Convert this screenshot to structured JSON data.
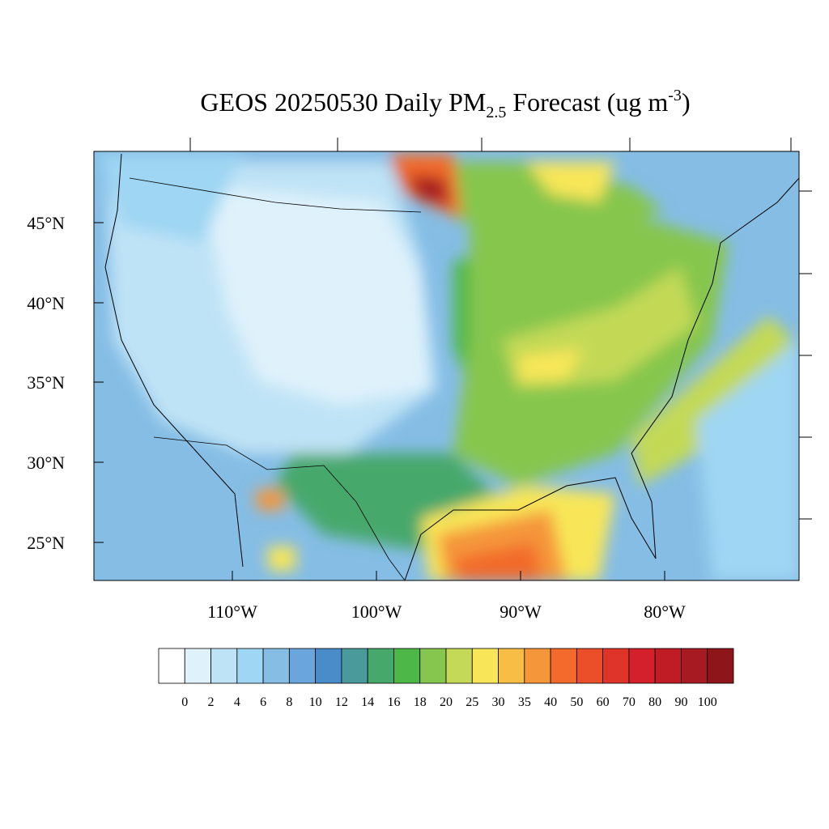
{
  "title": {
    "main": "GEOS 20250530 Daily PM",
    "sub": "2.5",
    "rest": " Forecast (ug m",
    "sup": "-3",
    "end": ")"
  },
  "lat_labels": [
    "45°N",
    "40°N",
    "35°N",
    "30°N",
    "25°N"
  ],
  "lon_labels": [
    "110°W",
    "100°W",
    "90°W",
    "80°W"
  ],
  "colorbar": {
    "levels": [
      0,
      2,
      4,
      6,
      8,
      10,
      12,
      14,
      16,
      18,
      20,
      25,
      30,
      35,
      40,
      50,
      60,
      70,
      80,
      90,
      100
    ],
    "colors": [
      "#ffffff",
      "#dff2fb",
      "#bfe3f6",
      "#9fd6f3",
      "#85bde5",
      "#6aa6db",
      "#4a8cc9",
      "#4a9a9c",
      "#47a86c",
      "#4db848",
      "#86c64e",
      "#c3d957",
      "#f8e658",
      "#f8bd45",
      "#f5963a",
      "#f26a2c",
      "#ea4f2a",
      "#df3528",
      "#d4202a",
      "#bf1c26",
      "#a81a22",
      "#8e1519"
    ]
  }
}
